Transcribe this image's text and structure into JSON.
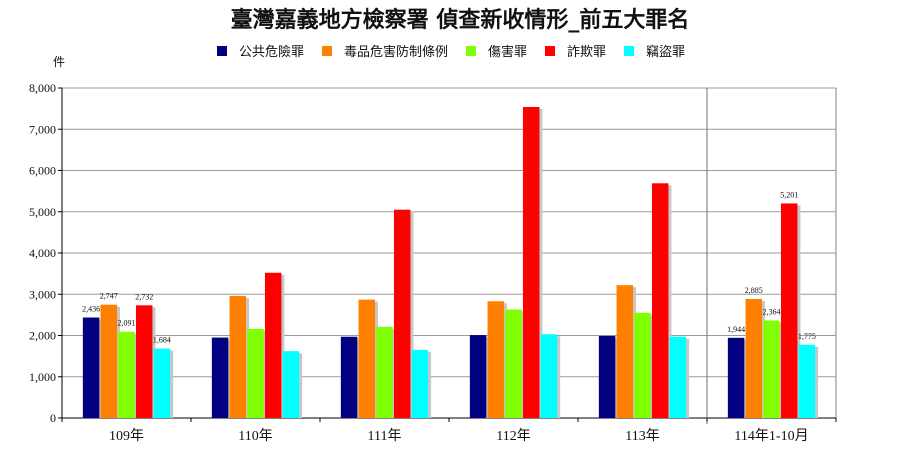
{
  "chart_data": {
    "type": "bar",
    "title": "臺灣嘉義地方檢察署 偵查新收情形_前五大罪名",
    "ylabel": "件",
    "xlabel": "",
    "ylim": [
      0,
      8000
    ],
    "yticks": [
      "0",
      "1,000",
      "2,000",
      "3,000",
      "4,000",
      "5,000",
      "6,000",
      "7,000",
      "8,000"
    ],
    "ytick_values": [
      0,
      1000,
      2000,
      3000,
      4000,
      5000,
      6000,
      7000,
      8000
    ],
    "grid": true,
    "legend_position": "top",
    "categories": [
      "109年",
      "110年",
      "111年",
      "112年",
      "113年",
      "114年1-10月"
    ],
    "series": [
      {
        "name": "公共危險罪",
        "color": "#000080",
        "values": [
          2436,
          1950,
          1970,
          2010,
          1990,
          1944
        ]
      },
      {
        "name": "毒品危害防制條例",
        "color": "#FF8000",
        "values": [
          2747,
          2960,
          2870,
          2830,
          3220,
          2885
        ]
      },
      {
        "name": "傷害罪",
        "color": "#80FF00",
        "values": [
          2091,
          2160,
          2210,
          2630,
          2550,
          2364
        ]
      },
      {
        "name": "詐欺罪",
        "color": "#FF0000",
        "values": [
          2732,
          3520,
          5050,
          7540,
          5690,
          5201
        ]
      },
      {
        "name": "竊盜罪",
        "color": "#00FFFF",
        "values": [
          1684,
          1620,
          1650,
          2030,
          1970,
          1775
        ]
      }
    ],
    "data_labels": [
      {
        "category": 0,
        "series": 0,
        "text": "2,436"
      },
      {
        "category": 0,
        "series": 1,
        "text": "2,747"
      },
      {
        "category": 0,
        "series": 2,
        "text": "2,091"
      },
      {
        "category": 0,
        "series": 3,
        "text": "2,732"
      },
      {
        "category": 0,
        "series": 4,
        "text": "1,684"
      },
      {
        "category": 5,
        "series": 0,
        "text": "1,944"
      },
      {
        "category": 5,
        "series": 1,
        "text": "2,885"
      },
      {
        "category": 5,
        "series": 2,
        "text": "2,364"
      },
      {
        "category": 5,
        "series": 3,
        "text": "5,201"
      },
      {
        "category": 5,
        "series": 4,
        "text": "1,775"
      }
    ],
    "separator_before_category": 5
  }
}
